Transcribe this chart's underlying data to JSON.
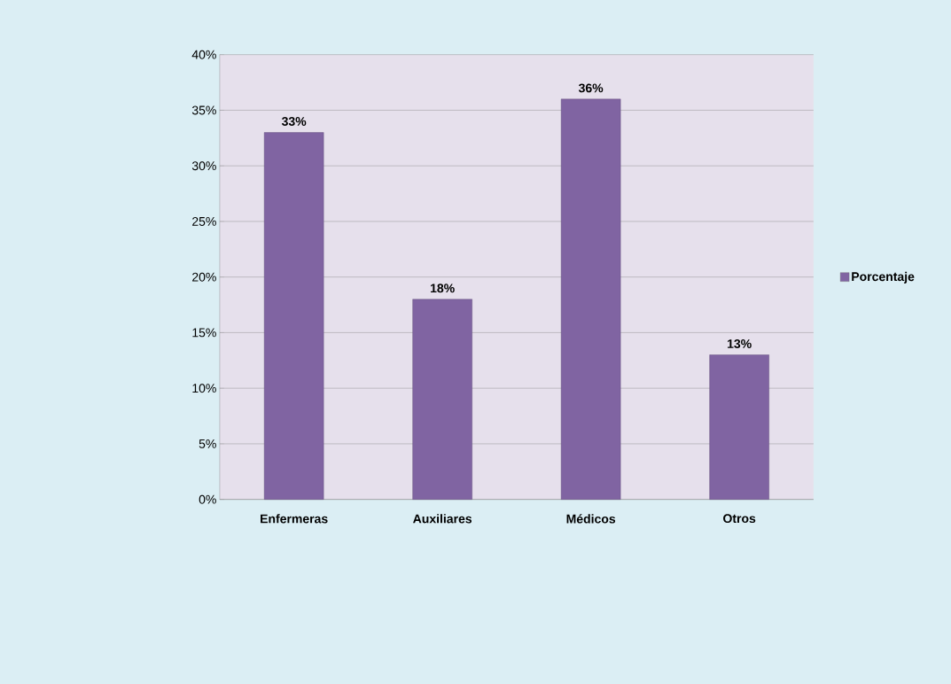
{
  "chart_data": {
    "type": "bar",
    "categories": [
      "Enfermeras",
      "Auxiliares",
      "Médicos",
      "Otros"
    ],
    "series": [
      {
        "name": "Porcentaje",
        "color": "#8064a2",
        "values": [
          33,
          18,
          36,
          13
        ],
        "value_labels": [
          "33%",
          "18%",
          "36%",
          "13%"
        ]
      }
    ],
    "ylim": [
      0,
      40
    ],
    "yticks": [
      {
        "value": 0,
        "label": "0%"
      },
      {
        "value": 5,
        "label": "5%"
      },
      {
        "value": 10,
        "label": "10%"
      },
      {
        "value": 15,
        "label": "15%"
      },
      {
        "value": 20,
        "label": "20%"
      },
      {
        "value": 25,
        "label": "25%"
      },
      {
        "value": 30,
        "label": "30%"
      },
      {
        "value": 35,
        "label": "35%"
      },
      {
        "value": 40,
        "label": "40%"
      }
    ],
    "grid": "y",
    "legend": "right"
  }
}
